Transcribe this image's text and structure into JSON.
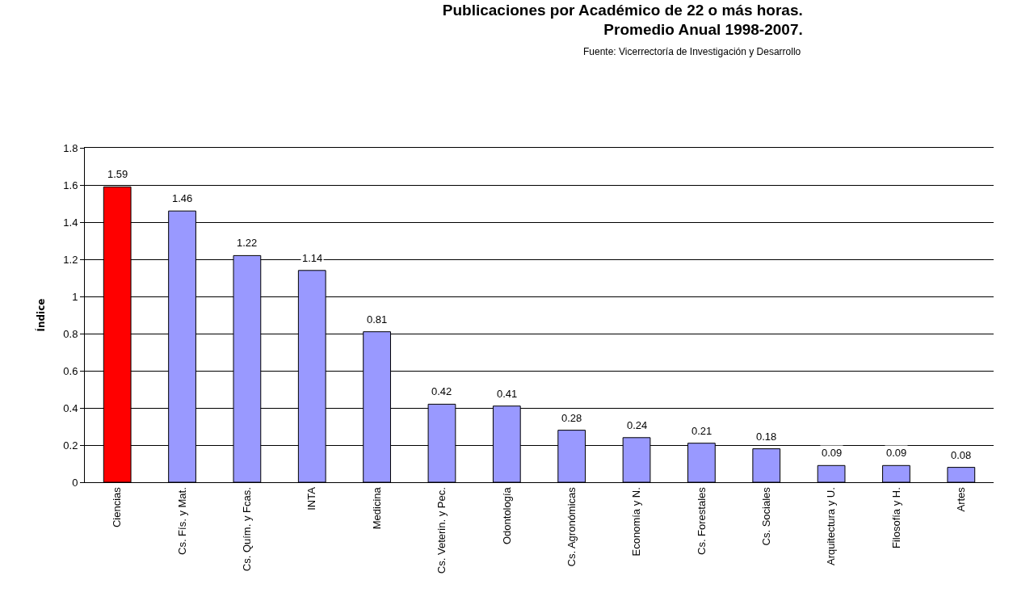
{
  "chart_data": {
    "type": "bar",
    "title": "Publicaciones por Académico de 22 o más horas.\nPromedio Anual 1998-2007.",
    "annotations": [
      "Fuente: Vicerrectoría de Investigación y Desarrollo"
    ],
    "ylabel": "Índice",
    "categories": [
      "Ciencias",
      "Cs. Fís. y Mat.",
      "Cs. Quím. y Fcas.",
      "INTA",
      "Medicina",
      "Cs. Veterin. y Pec.",
      "Odontología",
      "Cs. Agronómicas",
      "Economía y N.",
      "Cs. Forestales",
      "Cs. Sociales",
      "Arquitectura y U.",
      "Filosofía y H.",
      "Artes"
    ],
    "values": [
      1.59,
      1.46,
      1.22,
      1.14,
      0.81,
      0.42,
      0.41,
      0.28,
      0.24,
      0.21,
      0.18,
      0.09,
      0.09,
      0.08
    ],
    "colors": [
      "#ff0000",
      "#9999ff",
      "#9999ff",
      "#9999ff",
      "#9999ff",
      "#9999ff",
      "#9999ff",
      "#9999ff",
      "#9999ff",
      "#9999ff",
      "#9999ff",
      "#9999ff",
      "#9999ff",
      "#9999ff"
    ],
    "ylim": [
      0,
      1.8
    ],
    "yticks": [
      0,
      0.2,
      0.4,
      0.6,
      0.8,
      1,
      1.2,
      1.4,
      1.6,
      1.8
    ],
    "grid": "y",
    "data_labels": true
  }
}
